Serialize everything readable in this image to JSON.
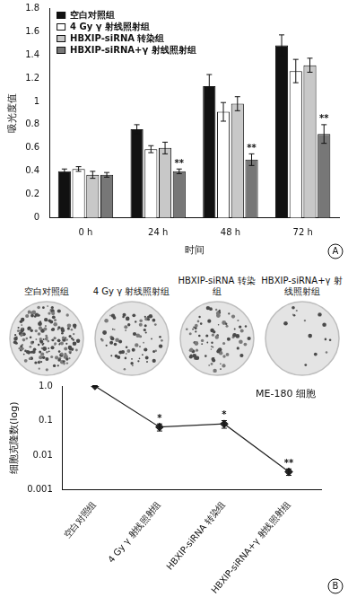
{
  "chart_data": [
    {
      "type": "bar",
      "categories": [
        "0 h",
        "24 h",
        "48 h",
        "72 h"
      ],
      "series": [
        {
          "name": "空白对照组",
          "color": "#111111",
          "values": [
            0.4,
            0.76,
            1.13,
            1.48
          ],
          "errors": [
            0.02,
            0.04,
            0.1,
            0.09
          ]
        },
        {
          "name": "4 Gy γ 射线照射组",
          "color": "#ffffff",
          "values": [
            0.42,
            0.59,
            0.91,
            1.26
          ],
          "errors": [
            0.02,
            0.03,
            0.08,
            0.1
          ]
        },
        {
          "name": "HBXIP-siRNA 转染组",
          "color": "#c8c8c8",
          "values": [
            0.37,
            0.6,
            0.98,
            1.31
          ],
          "errors": [
            0.03,
            0.05,
            0.06,
            0.06
          ]
        },
        {
          "name": "HBXIP-siRNA+γ 射线照射组",
          "color": "#777777",
          "values": [
            0.37,
            0.4,
            0.5,
            0.72
          ],
          "errors": [
            0.02,
            0.02,
            0.05,
            0.08
          ],
          "significance": [
            null,
            "**",
            "**",
            "**"
          ]
        }
      ],
      "x_label": "时间",
      "y_label": "吸光度值",
      "ylim": [
        0,
        1.8
      ],
      "yticks": [
        0,
        0.2,
        0.4,
        0.6,
        0.8,
        1,
        1.2,
        1.4,
        1.6,
        1.8
      ],
      "grid": false,
      "legend": "upper left",
      "panel_label": "A"
    },
    {
      "type": "line",
      "categories": [
        "空白对照组",
        "4 Gy γ 射线照射组",
        "HBXIP-siRNA 转染组",
        "HBXIP-siRNA+γ 射线照射组"
      ],
      "values": [
        1.0,
        0.065,
        0.08,
        0.0033
      ],
      "errors": [
        0.03,
        0.015,
        0.02,
        0.0007
      ],
      "significance": [
        null,
        "*",
        "*",
        "**"
      ],
      "color": "#222222",
      "marker": "diamond",
      "line_style": "solid",
      "y_label": "细胞克隆数(log)",
      "log": "y",
      "ylim": [
        0.001,
        1
      ],
      "yticks": [
        0.001,
        0.01,
        0.1,
        {
          "value": 1,
          "label": "1.0"
        }
      ],
      "grid": false,
      "annotations": [
        "ME-180 细胞"
      ],
      "panel_label": "B"
    }
  ],
  "colony_images": {
    "labels": [
      "空白对照组",
      "4 Gy γ 射线照射组",
      "HBXIP-siRNA 转染组",
      "HBXIP-siRNA+γ 射线照射组"
    ]
  }
}
